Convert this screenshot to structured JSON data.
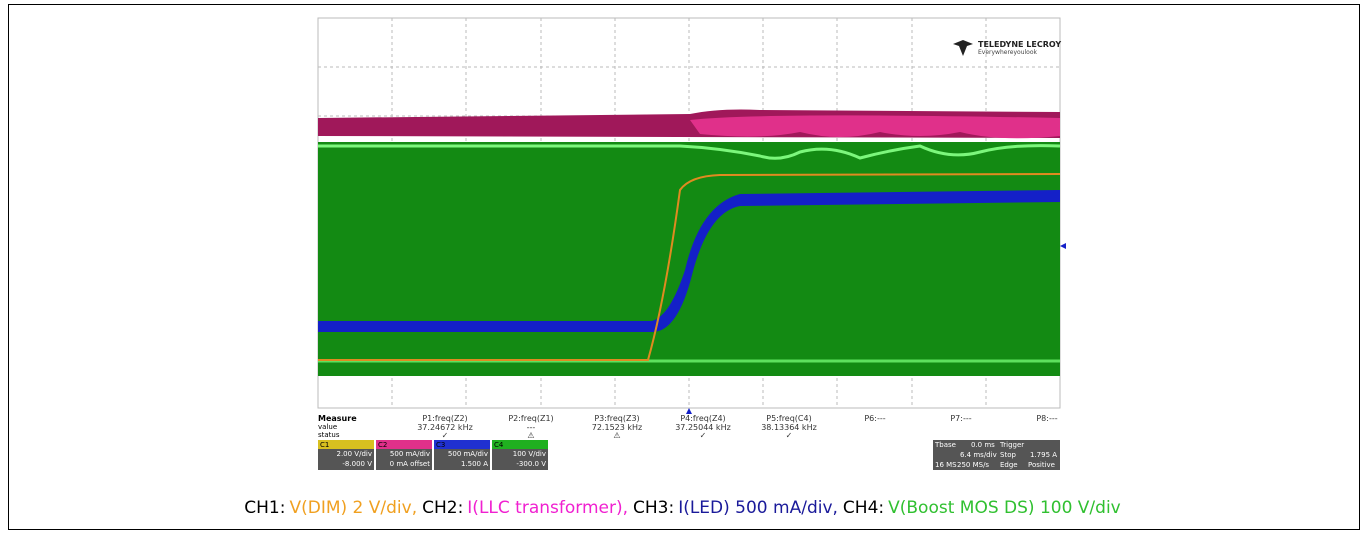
{
  "logo": {
    "brand": "TELEDYNE LECROY",
    "tagline": "Everywhereyoulook"
  },
  "measure": {
    "headers": [
      "Measure",
      "value",
      "status"
    ],
    "params": [
      {
        "name": "P1:freq(Z2)",
        "value": "37.24672 kHz",
        "status": "✓"
      },
      {
        "name": "P2:freq(Z1)",
        "value": "---",
        "status": "⚠"
      },
      {
        "name": "P3:freq(Z3)",
        "value": "72.1523 kHz",
        "status": "⚠"
      },
      {
        "name": "P4:freq(Z4)",
        "value": "37.25044 kHz",
        "status": "✓"
      },
      {
        "name": "P5:freq(C4)",
        "value": "38.13364 kHz",
        "status": "✓"
      },
      {
        "name": "P6:---"
      },
      {
        "name": "P7:---"
      },
      {
        "name": "P8:---"
      }
    ]
  },
  "channels": [
    {
      "id": "C1",
      "scale": "2.00 V/div",
      "offset": "-8.000 V"
    },
    {
      "id": "C2",
      "scale": "500 mA/div",
      "offset": "0 mA offset"
    },
    {
      "id": "C3",
      "scale": "500 mA/div",
      "offset": "1.500 A"
    },
    {
      "id": "C4",
      "scale": "100 V/div",
      "offset": "-300.0 V"
    }
  ],
  "timebase": {
    "label": "Tbase",
    "delay": "0.0 ms",
    "scale": "6.4 ms/div",
    "points": "16 MS",
    "rate": "250 MS/s"
  },
  "trigger": {
    "label": "Trigger",
    "mode": "Stop",
    "level": "1.795 A",
    "type": "Edge",
    "slope": "Positive"
  },
  "caption": [
    {
      "label": "CH1:",
      "text": "V(DIM) 2 V/div,"
    },
    {
      "label": "CH2:",
      "text": "I(LLC transformer),"
    },
    {
      "label": "CH3:",
      "text": "I(LED) 500 mA/div,"
    },
    {
      "label": "CH4:",
      "text": "V(Boost MOS DS) 100 V/div"
    }
  ]
}
